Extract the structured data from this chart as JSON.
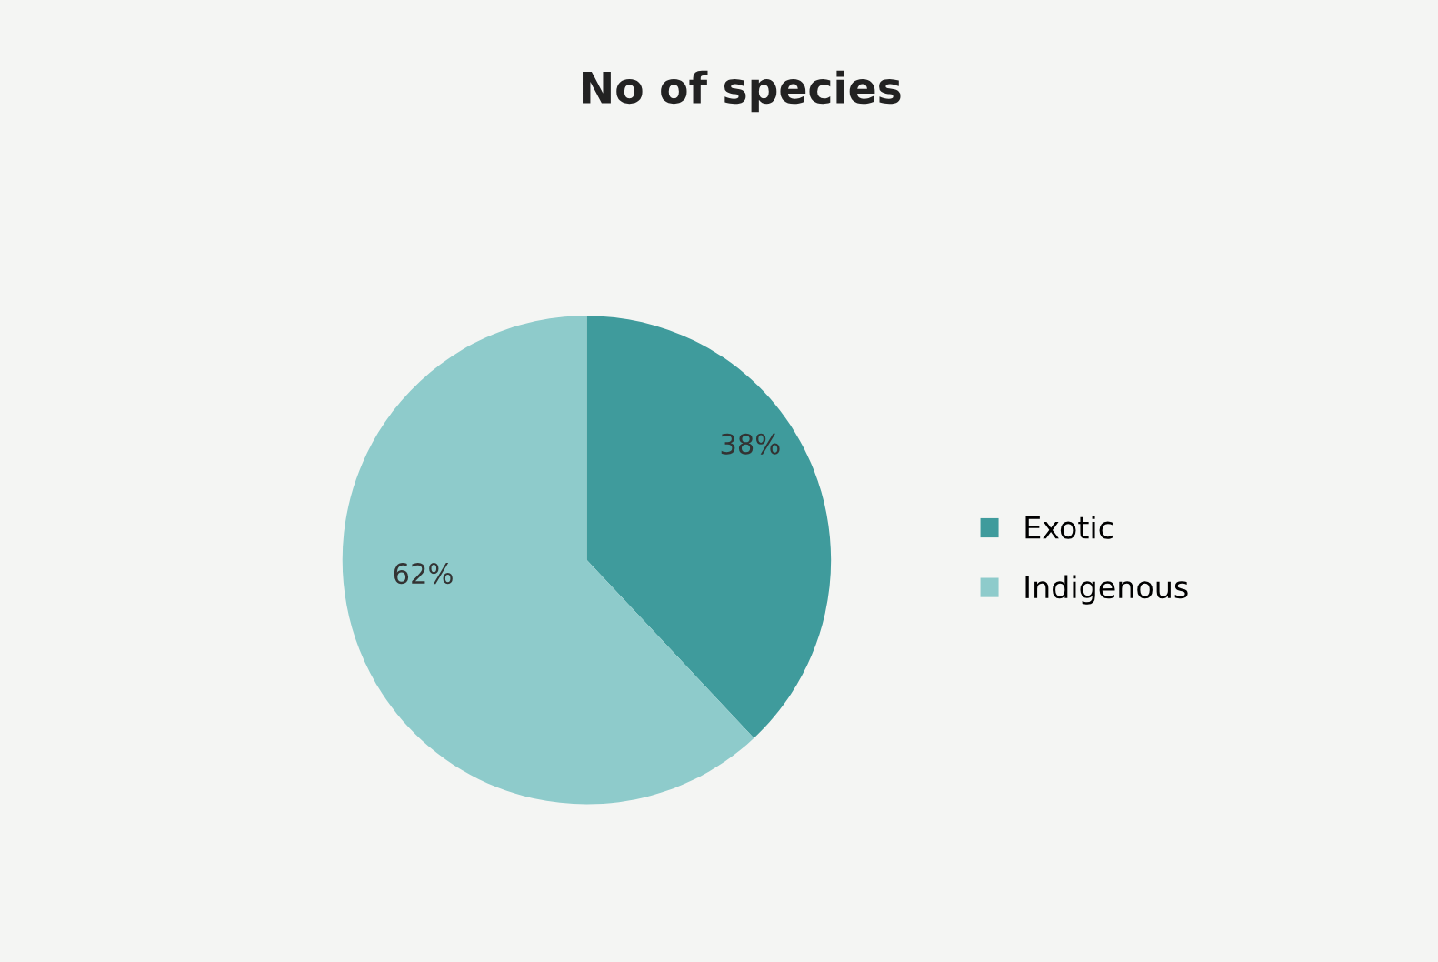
{
  "chart_data": {
    "type": "pie",
    "title": "No of species",
    "categories": [
      "Exotic",
      "Indigenous"
    ],
    "values": [
      38,
      62
    ],
    "colors": [
      "#3f9b9c",
      "#8ecbcb"
    ],
    "value_labels": [
      "38%",
      "62%"
    ],
    "legend": "right"
  }
}
